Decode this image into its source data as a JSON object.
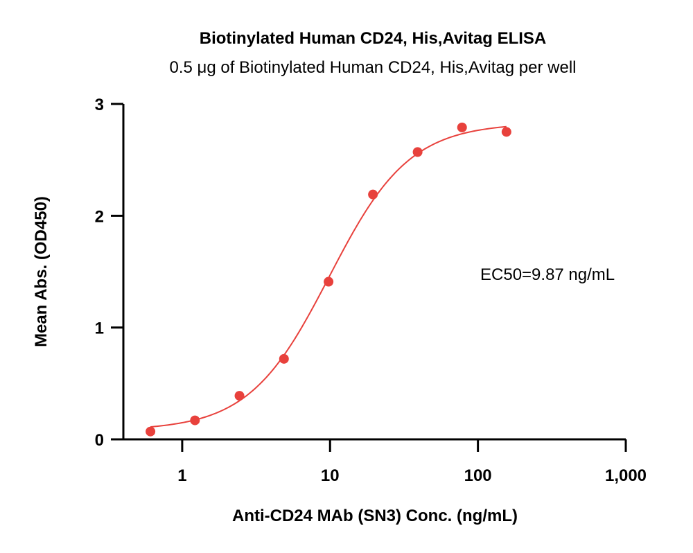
{
  "chart_data": {
    "type": "scatter",
    "title": "Biotinylated Human CD24, His,Avitag ELISA",
    "subtitle": "0.5 μg of Biotinylated Human CD24, His,Avitag per well",
    "xlabel": "Anti-CD24 MAb (SN3) Conc. (ng/mL)",
    "ylabel": "Mean Abs. (OD450)",
    "xscale": "log",
    "xlim": [
      0.4,
      1000
    ],
    "ylim": [
      0,
      3
    ],
    "x_ticks": [
      1,
      10,
      100,
      1000
    ],
    "x_tick_labels": [
      "1",
      "10",
      "100",
      "1,000"
    ],
    "y_ticks": [
      0,
      1,
      2,
      3
    ],
    "y_tick_labels": [
      "0",
      "1",
      "2",
      "3"
    ],
    "grid": false,
    "color": "#e8413c",
    "series": [
      {
        "x": [
          0.61,
          1.22,
          2.44,
          4.88,
          9.77,
          19.5,
          39.1,
          78.1,
          156
        ],
        "y": [
          0.07,
          0.17,
          0.39,
          0.72,
          1.41,
          2.19,
          2.57,
          2.79,
          2.75
        ]
      }
    ],
    "fit": {
      "model": "4PL",
      "bottom": 0.08,
      "top": 2.83,
      "ec50": 9.87,
      "hill": 1.6
    },
    "annotation": "EC50=9.87 ng/mL"
  }
}
